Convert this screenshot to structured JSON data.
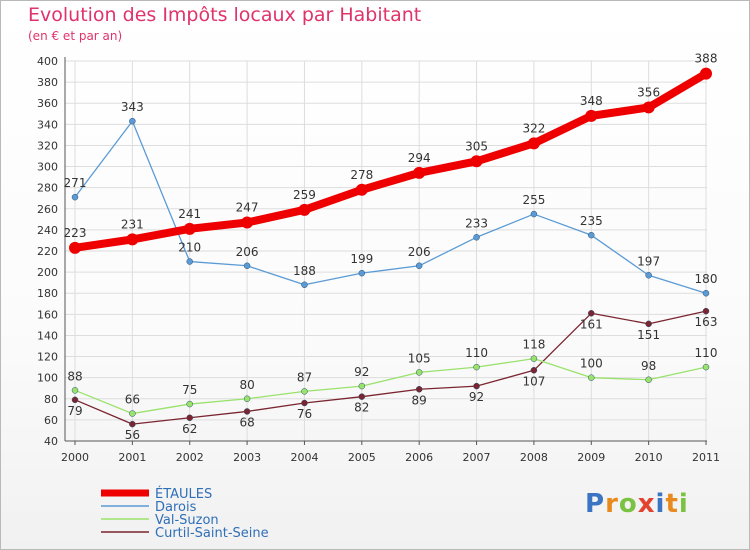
{
  "title": "Evolution des Impôts locaux par Habitant",
  "subtitle": "(en € et par an)",
  "logo_text": "Proxiti",
  "chart_data": {
    "type": "line",
    "x": [
      "2000",
      "2001",
      "2002",
      "2003",
      "2004",
      "2005",
      "2006",
      "2007",
      "2008",
      "2009",
      "2010",
      "2011"
    ],
    "ylim": [
      40,
      400
    ],
    "yticks": [
      40,
      60,
      80,
      100,
      120,
      140,
      160,
      180,
      200,
      220,
      240,
      260,
      280,
      300,
      320,
      340,
      360,
      380,
      400
    ],
    "grid": true,
    "legend_position": "bottom-left",
    "series": [
      {
        "name": "ÉTAULES",
        "color": "#ee0000",
        "values": [
          223,
          231,
          241,
          247,
          259,
          278,
          294,
          305,
          322,
          348,
          356,
          388
        ]
      },
      {
        "name": "Darois",
        "color": "#5b9bd5",
        "values": [
          271,
          343,
          210,
          206,
          188,
          199,
          206,
          233,
          255,
          235,
          197,
          180
        ]
      },
      {
        "name": "Val-Suzon",
        "color": "#99e26b",
        "values": [
          88,
          66,
          75,
          80,
          87,
          92,
          105,
          110,
          118,
          100,
          98,
          110
        ]
      },
      {
        "name": "Curtil-Saint-Seine",
        "color": "#7a2530",
        "values": [
          79,
          56,
          62,
          68,
          76,
          82,
          89,
          92,
          107,
          161,
          151,
          163
        ]
      }
    ]
  }
}
